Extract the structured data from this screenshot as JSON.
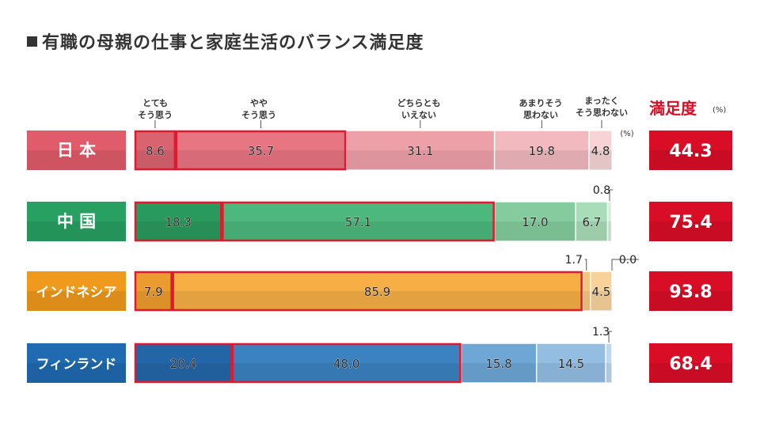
{
  "title": "有職の母親の仕事と家庭生活のバランス満足度",
  "legend": {
    "cat1_l1": "とても",
    "cat1_l2": "そう思う",
    "cat2_l1": "やや",
    "cat2_l2": "そう思う",
    "cat3_l1": "どちらとも",
    "cat3_l2": "いえない",
    "cat4_l1": "あまりそう",
    "cat4_l2": "思わない",
    "cat5_l1": "まったく",
    "cat5_l2": "そう思わない",
    "unit": "(%)"
  },
  "satisfaction_header": "満足度",
  "satisfaction_unit": "(%)",
  "chart_data": {
    "type": "bar",
    "stacked": true,
    "orientation": "horizontal",
    "unit": "%",
    "categories": [
      "日 本",
      "中 国",
      "インドネシア",
      "フィンランド"
    ],
    "series": [
      {
        "name": "とてもそう思う",
        "values": [
          8.6,
          18.3,
          7.9,
          20.4
        ]
      },
      {
        "name": "ややそう思う",
        "values": [
          35.7,
          57.1,
          85.9,
          48.0
        ]
      },
      {
        "name": "どちらともいえない",
        "values": [
          31.1,
          17.0,
          1.7,
          15.8
        ]
      },
      {
        "name": "あまりそう思わない",
        "values": [
          19.8,
          6.7,
          4.5,
          14.5
        ]
      },
      {
        "name": "まったくそう思わない",
        "values": [
          4.8,
          0.8,
          0.0,
          1.3
        ]
      }
    ],
    "satisfaction": [
      44.3,
      75.4,
      93.8,
      68.4
    ],
    "label_text": [
      [
        "8.6",
        "35.7",
        "31.1",
        "19.8",
        "4.8"
      ],
      [
        "18.3",
        "57.1",
        "17.0",
        "6.7",
        "0.8"
      ],
      [
        "7.9",
        "85.9",
        "1.7",
        "4.5",
        "0.0"
      ],
      [
        "20.4",
        "48.0",
        "15.8",
        "14.5",
        "1.3"
      ]
    ],
    "satisfaction_text": [
      "44.3",
      "75.4",
      "93.8",
      "68.4"
    ],
    "colors": [
      [
        "#d9636e",
        "#e87582",
        "#eea0a8",
        "#f2b9be",
        "#f7d3d6"
      ],
      [
        "#2a9a5c",
        "#4cb87b",
        "#84cc9d",
        "#a9dcb8",
        "#cfeeda"
      ],
      [
        "#ec9b2e",
        "#f6ae45",
        "#f8c57f",
        "#f9d29a",
        "#fbe3bf"
      ],
      [
        "#2366a8",
        "#3a82c0",
        "#6ea6d6",
        "#93bee2",
        "#bcd7ee"
      ]
    ],
    "label_colors": [
      "#e05c6a",
      "#27a061",
      "#ef9a1c",
      "#1f6ab0"
    ],
    "highlight_color": "#e2182e",
    "satisfaction_color": "#d90e26"
  }
}
